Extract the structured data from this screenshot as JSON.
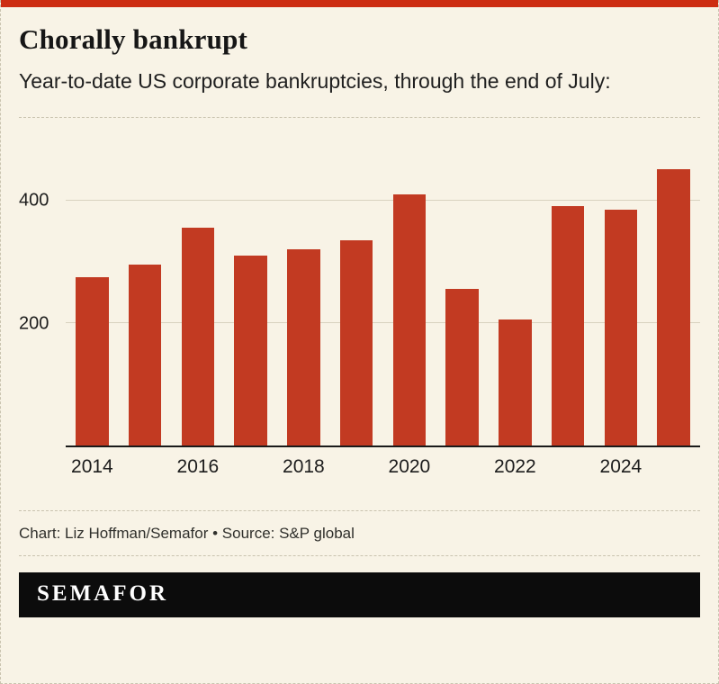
{
  "page": {
    "title": "Chorally bankrupt",
    "subtitle": "Year-to-date US corporate bankruptcies, through the end of July:",
    "credit": "Chart: Liz Hoffman/Semafor • Source: S&P global",
    "logo": "SEMAFOR"
  },
  "colors": {
    "background": "#f8f3e6",
    "top_strip": "#cd2d12",
    "bar": "#c23a22",
    "baseline": "#1a1a1a",
    "gridline": "#d8d2bf",
    "dashed_rule": "#c9c3af",
    "logo_background": "#0c0c0c"
  },
  "chart_data": {
    "type": "bar",
    "title": "Chorally bankrupt",
    "subtitle": "Year-to-date US corporate bankruptcies, through the end of July:",
    "categories": [
      2014,
      2015,
      2016,
      2017,
      2018,
      2019,
      2020,
      2021,
      2022,
      2023,
      2024,
      2025
    ],
    "values": [
      275,
      295,
      355,
      310,
      320,
      335,
      410,
      255,
      205,
      390,
      385,
      450
    ],
    "x_tick_labels": [
      "2014",
      "",
      "2016",
      "",
      "2018",
      "",
      "2020",
      "",
      "2022",
      "",
      "2024",
      ""
    ],
    "y_ticks": [
      200,
      400
    ],
    "ylim": [
      0,
      490
    ],
    "xlabel": "",
    "ylabel": "",
    "bar_color": "#c23a22",
    "grid": true,
    "legend": false,
    "source": "S&P global",
    "credit": "Chart: Liz Hoffman/Semafor"
  }
}
